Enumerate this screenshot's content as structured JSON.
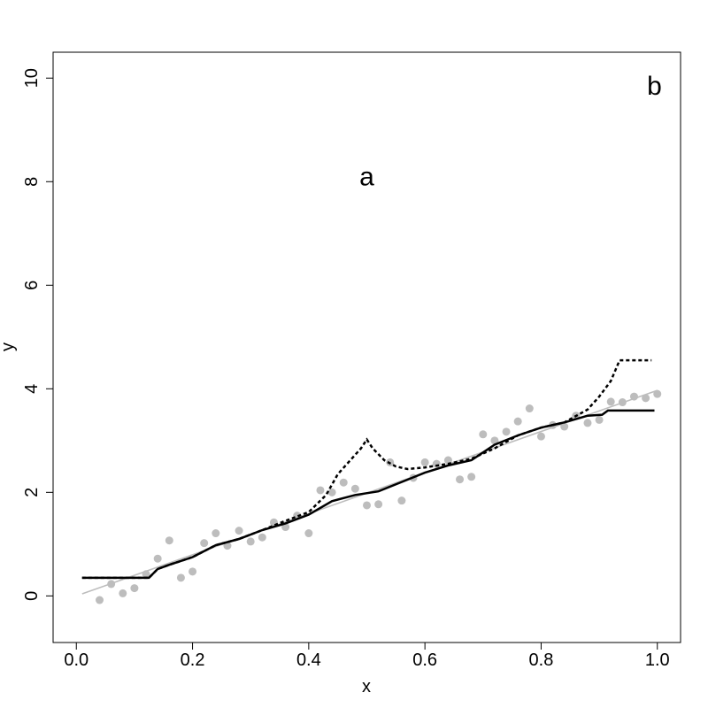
{
  "chart_data": {
    "type": "scatter",
    "xlabel": "x",
    "ylabel": "y",
    "xlim": [
      -0.04,
      1.04
    ],
    "ylim": [
      -0.9,
      10.5
    ],
    "x_ticks": [
      "0.0",
      "0.2",
      "0.4",
      "0.6",
      "0.8",
      "1.0"
    ],
    "x_tick_values": [
      0.0,
      0.2,
      0.4,
      0.6,
      0.8,
      1.0
    ],
    "y_ticks": [
      "0",
      "2",
      "4",
      "6",
      "8",
      "10"
    ],
    "y_tick_values": [
      0,
      2,
      4,
      6,
      8,
      10
    ],
    "annotations": [
      {
        "text": "a",
        "x": 0.5,
        "y": 8.1
      },
      {
        "text": "b",
        "x": 0.995,
        "y": 9.85
      }
    ],
    "colors": {
      "points": "#bdbdbd",
      "fit_line": "#bdbdbd",
      "solid_curve": "#000000",
      "dashed_curve": "#000000"
    },
    "series": [
      {
        "kind": "points",
        "x": [
          0.04,
          0.06,
          0.08,
          0.1,
          0.12,
          0.14,
          0.16,
          0.18,
          0.2,
          0.22,
          0.24,
          0.26,
          0.28,
          0.3,
          0.32,
          0.34,
          0.36,
          0.38,
          0.4,
          0.42,
          0.44,
          0.46,
          0.48,
          0.5,
          0.52,
          0.54,
          0.56,
          0.58,
          0.6,
          0.62,
          0.64,
          0.66,
          0.68,
          0.7,
          0.72,
          0.74,
          0.76,
          0.78,
          0.8,
          0.82,
          0.84,
          0.86,
          0.88,
          0.9,
          0.92,
          0.94,
          0.96,
          0.98,
          1.0
        ],
        "y": [
          -0.08,
          0.23,
          0.05,
          0.15,
          0.42,
          0.72,
          1.07,
          0.35,
          0.47,
          1.02,
          1.21,
          0.97,
          1.26,
          1.05,
          1.13,
          1.42,
          1.33,
          1.55,
          1.21,
          2.04,
          2.0,
          2.19,
          2.07,
          1.75,
          1.77,
          2.58,
          1.84,
          2.28,
          2.58,
          2.55,
          2.62,
          2.25,
          2.3,
          3.12,
          3.0,
          3.17,
          3.37,
          3.62,
          3.08,
          3.3,
          3.27,
          3.48,
          3.34,
          3.4,
          3.75,
          3.74,
          3.85,
          3.82,
          3.9
        ]
      },
      {
        "kind": "fit-line",
        "x": [
          0.01,
          1.0
        ],
        "y": [
          0.04,
          3.97
        ]
      },
      {
        "kind": "solid-curve",
        "x": [
          0.01,
          0.125,
          0.14,
          0.16,
          0.2,
          0.24,
          0.28,
          0.32,
          0.36,
          0.4,
          0.44,
          0.48,
          0.52,
          0.56,
          0.6,
          0.64,
          0.68,
          0.72,
          0.76,
          0.8,
          0.84,
          0.88,
          0.905,
          0.915,
          0.995
        ],
        "y": [
          0.35,
          0.35,
          0.52,
          0.6,
          0.75,
          0.98,
          1.1,
          1.27,
          1.4,
          1.57,
          1.83,
          1.95,
          2.02,
          2.2,
          2.38,
          2.52,
          2.62,
          2.92,
          3.1,
          3.25,
          3.35,
          3.48,
          3.5,
          3.58,
          3.58
        ]
      },
      {
        "kind": "dashed-curve",
        "x": [
          0.01,
          0.125,
          0.14,
          0.16,
          0.2,
          0.24,
          0.28,
          0.32,
          0.36,
          0.4,
          0.43,
          0.45,
          0.47,
          0.49,
          0.5,
          0.51,
          0.53,
          0.55,
          0.57,
          0.6,
          0.64,
          0.68,
          0.72,
          0.76,
          0.8,
          0.84,
          0.88,
          0.9,
          0.92,
          0.935,
          0.99
        ],
        "y": [
          0.35,
          0.35,
          0.52,
          0.6,
          0.75,
          0.98,
          1.1,
          1.27,
          1.45,
          1.62,
          1.95,
          2.35,
          2.6,
          2.85,
          3.02,
          2.85,
          2.62,
          2.5,
          2.45,
          2.48,
          2.55,
          2.65,
          2.85,
          3.1,
          3.25,
          3.35,
          3.6,
          3.85,
          4.15,
          4.55,
          4.55
        ]
      }
    ]
  }
}
